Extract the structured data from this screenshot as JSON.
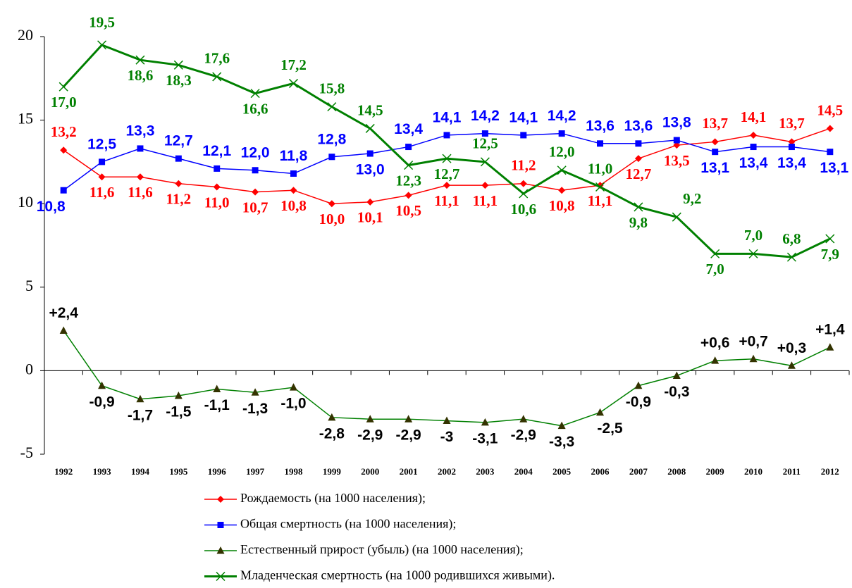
{
  "chart_data": {
    "type": "line",
    "categories": [
      "1992",
      "1993",
      "1994",
      "1995",
      "1996",
      "1997",
      "1998",
      "1999",
      "2000",
      "2001",
      "2002",
      "2003",
      "2004",
      "2005",
      "2006",
      "2007",
      "2008",
      "2009",
      "2010",
      "2011",
      "2012"
    ],
    "ylim": [
      -5,
      20
    ],
    "yticks": [
      -5,
      0,
      5,
      10,
      15,
      20
    ],
    "grid": false,
    "legend": "bottom",
    "series": [
      {
        "name": "Рождаемость (на 1000 населения);",
        "color": "#ff0000",
        "marker": "diamond",
        "values": [
          13.2,
          11.6,
          11.6,
          11.2,
          11.0,
          10.7,
          10.8,
          10.0,
          10.1,
          10.5,
          11.1,
          11.1,
          11.2,
          10.8,
          11.1,
          12.7,
          13.5,
          13.7,
          14.1,
          13.7,
          14.5
        ],
        "value_labels": [
          "13,2",
          "11,6",
          "11,6",
          "11,2",
          "11,0",
          "10,7",
          "10,8",
          "10,0",
          "10,1",
          "10,5",
          "11,1",
          "11,1",
          "11,2",
          "10,8",
          "11,1",
          "12,7",
          "13,5",
          "13,7",
          "14,1",
          "13,7",
          "14,5"
        ]
      },
      {
        "name": "Общая смертность (на 1000 населения);",
        "color": "#0000ff",
        "marker": "square",
        "values": [
          10.8,
          12.5,
          13.3,
          12.7,
          12.1,
          12.0,
          11.8,
          12.8,
          13.0,
          13.4,
          14.1,
          14.2,
          14.1,
          14.2,
          13.6,
          13.6,
          13.8,
          13.1,
          13.4,
          13.4,
          13.1
        ],
        "value_labels": [
          "10,8",
          "12,5",
          "13,3",
          "12,7",
          "12,1",
          "12,0",
          "11,8",
          "12,8",
          "13,0",
          "13,4",
          "14,1",
          "14,2",
          "14,1",
          "14,2",
          "13,6",
          "13,6",
          "13,8",
          "13,1",
          "13,4",
          "13,4",
          "13,1"
        ]
      },
      {
        "name": "Естественный прирост (убыль) (на 1000 населения);",
        "color": "#008000",
        "marker": "triangle",
        "marker_color": "#333300",
        "values": [
          2.4,
          -0.9,
          -1.7,
          -1.5,
          -1.1,
          -1.3,
          -1.0,
          -2.8,
          -2.9,
          -2.9,
          -3,
          -3.1,
          -2.9,
          -3.3,
          -2.5,
          -0.9,
          -0.3,
          0.6,
          0.7,
          0.3,
          1.4
        ],
        "value_labels": [
          "+2,4",
          "-0,9",
          "-1,7",
          "-1,5",
          "-1,1",
          "-1,3",
          "-1,0",
          "-2,8",
          "-2,9",
          "-2,9",
          "-3",
          "-3,1",
          "-2,9",
          "-3,3",
          "-2,5",
          "-0,9",
          "-0,3",
          "+0,6",
          "+0,7",
          "+0,3",
          "+1,4"
        ]
      },
      {
        "name": "Младенческая смертность (на 1000 родившихся живыми).",
        "color": "#008000",
        "marker": "x",
        "values": [
          17.0,
          19.5,
          18.6,
          18.3,
          17.6,
          16.6,
          17.2,
          15.8,
          14.5,
          12.3,
          12.7,
          12.5,
          10.6,
          12.0,
          11.0,
          9.8,
          9.2,
          7.0,
          7.0,
          6.8,
          7.9
        ],
        "value_labels": [
          "17,0",
          "19,5",
          "18,6",
          "18,3",
          "17,6",
          "16,6",
          "17,2",
          "15,8",
          "14,5",
          "12,3",
          "12,7",
          "12,5",
          "10,6",
          "12,0",
          "11,0",
          "9,8",
          "9,2",
          "7,0",
          "7,0",
          "6,8",
          "7,9"
        ]
      }
    ]
  }
}
